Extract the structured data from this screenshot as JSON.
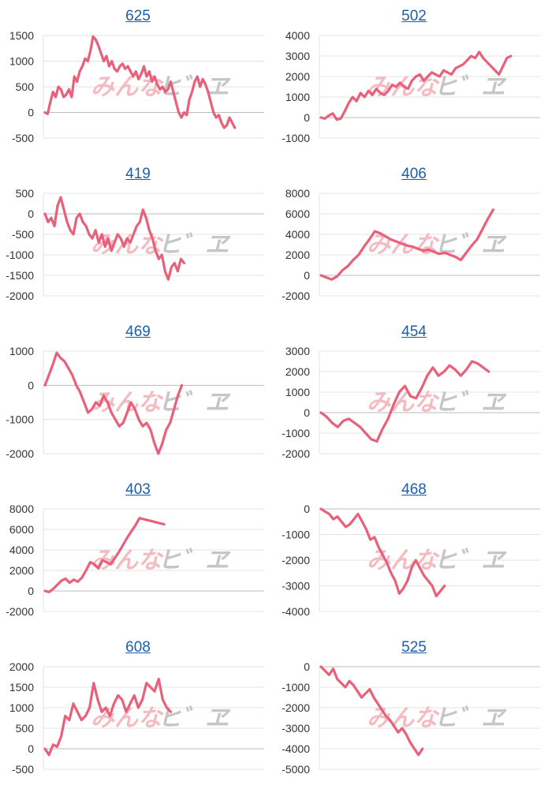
{
  "colors": {
    "line": "#e8607a",
    "grid": "#e3e3e3",
    "axis": "#bbbbbb",
    "link": "#1a5fa8",
    "watermark_pink": "#f3b8bf",
    "watermark_gray": "#c4c4c4"
  },
  "watermark": {
    "text_main": "みんな",
    "text_right": "ヒ゛ヱ"
  },
  "chart_data": [
    {
      "type": "line",
      "title": "625",
      "ylim": [
        -500,
        1500
      ],
      "yticks": [
        -500,
        0,
        500,
        1000,
        1500
      ],
      "values": [
        0,
        -30,
        200,
        400,
        300,
        500,
        450,
        300,
        350,
        450,
        300,
        700,
        600,
        800,
        900,
        1050,
        1000,
        1200,
        1480,
        1420,
        1300,
        1150,
        1000,
        1100,
        900,
        1000,
        850,
        800,
        900,
        950,
        850,
        900,
        800,
        700,
        800,
        650,
        750,
        900,
        700,
        800,
        600,
        700,
        550,
        450,
        500,
        400,
        450,
        600,
        400,
        200,
        0,
        -100,
        0,
        -50,
        250,
        400,
        600,
        700,
        500,
        650,
        550,
        400,
        200,
        0,
        -100,
        -50,
        -200,
        -300,
        -250,
        -100,
        -200,
        -300
      ]
    },
    {
      "type": "line",
      "title": "502",
      "ylim": [
        -1000,
        4000
      ],
      "yticks": [
        -1000,
        0,
        1000,
        2000,
        3000,
        4000
      ],
      "values": [
        0,
        -50,
        100,
        200,
        -100,
        -50,
        300,
        700,
        1000,
        800,
        1200,
        1000,
        1300,
        1100,
        1400,
        1200,
        1100,
        1300,
        1600,
        1500,
        1700,
        1500,
        1400,
        1800,
        2000,
        2100,
        1800,
        2000,
        2200,
        2100,
        2000,
        2300,
        2200,
        2100,
        2400,
        2500,
        2600,
        2800,
        3000,
        2900,
        3200,
        2900,
        2700,
        2500,
        2300,
        2100,
        2500,
        2900,
        3000
      ]
    },
    {
      "type": "line",
      "title": "419",
      "ylim": [
        -2000,
        500
      ],
      "yticks": [
        -2000,
        -1500,
        -1000,
        -500,
        0,
        500
      ],
      "values": [
        0,
        -200,
        -100,
        -300,
        200,
        400,
        100,
        -200,
        -400,
        -500,
        -100,
        0,
        -200,
        -300,
        -500,
        -600,
        -400,
        -700,
        -500,
        -800,
        -600,
        -900,
        -700,
        -500,
        -600,
        -800,
        -600,
        -700,
        -500,
        -300,
        -200,
        100,
        -100,
        -400,
        -600,
        -900,
        -1100,
        -1000,
        -1400,
        -1600,
        -1300,
        -1200,
        -1400,
        -1100,
        -1200
      ]
    },
    {
      "type": "line",
      "title": "406",
      "ylim": [
        -2000,
        8000
      ],
      "yticks": [
        -2000,
        0,
        2000,
        4000,
        6000,
        8000
      ],
      "values": [
        0,
        -200,
        -400,
        -100,
        500,
        900,
        1500,
        2000,
        2800,
        3500,
        4300,
        4100,
        3800,
        3500,
        3300,
        3100,
        2900,
        2800,
        2600,
        2400,
        2500,
        2300,
        2100,
        2200,
        2000,
        1800,
        1500,
        2200,
        2900,
        3500,
        4500,
        5500,
        6400
      ]
    },
    {
      "type": "line",
      "title": "469",
      "ylim": [
        -2000,
        1000
      ],
      "yticks": [
        -2000,
        -1000,
        0,
        1000
      ],
      "values": [
        0,
        300,
        600,
        950,
        800,
        700,
        500,
        300,
        0,
        -200,
        -500,
        -800,
        -700,
        -500,
        -600,
        -300,
        -500,
        -800,
        -1000,
        -1200,
        -1100,
        -800,
        -500,
        -700,
        -1000,
        -1200,
        -1100,
        -1300,
        -1700,
        -2000,
        -1700,
        -1300,
        -1100,
        -700,
        -300,
        0
      ]
    },
    {
      "type": "line",
      "title": "454",
      "ylim": [
        -2000,
        3000
      ],
      "yticks": [
        -2000,
        -1000,
        0,
        1000,
        2000,
        3000
      ],
      "values": [
        0,
        -200,
        -500,
        -700,
        -400,
        -300,
        -500,
        -700,
        -1000,
        -1300,
        -1400,
        -800,
        -300,
        400,
        1000,
        1300,
        800,
        700,
        1200,
        1800,
        2200,
        1800,
        2000,
        2300,
        2100,
        1800,
        2100,
        2500,
        2400,
        2200,
        2000
      ]
    },
    {
      "type": "line",
      "title": "403",
      "ylim": [
        -2000,
        8000
      ],
      "yticks": [
        -2000,
        0,
        2000,
        4000,
        6000,
        8000
      ],
      "values": [
        0,
        -100,
        200,
        600,
        1000,
        1200,
        800,
        1100,
        900,
        1300,
        2000,
        2800,
        2600,
        2200,
        3000,
        2800,
        2600,
        3200,
        3800,
        4500,
        5200,
        5800,
        6400,
        7100,
        7000,
        6900,
        6800,
        6700,
        6600,
        6500
      ]
    },
    {
      "type": "line",
      "title": "468",
      "ylim": [
        -4000,
        0
      ],
      "yticks": [
        -4000,
        -3000,
        -2000,
        -1000,
        0
      ],
      "values": [
        0,
        -100,
        -200,
        -400,
        -300,
        -500,
        -700,
        -600,
        -400,
        -200,
        -500,
        -800,
        -1200,
        -1100,
        -1500,
        -1800,
        -2100,
        -2500,
        -2800,
        -3300,
        -3100,
        -2800,
        -2300,
        -2000,
        -2300,
        -2600,
        -2800,
        -3000,
        -3400,
        -3200,
        -3000
      ]
    },
    {
      "type": "line",
      "title": "608",
      "ylim": [
        -500,
        2000
      ],
      "yticks": [
        -500,
        0,
        500,
        1000,
        1500,
        2000
      ],
      "values": [
        0,
        -150,
        100,
        50,
        300,
        800,
        700,
        1100,
        900,
        700,
        800,
        1000,
        1600,
        1200,
        900,
        1000,
        800,
        1100,
        1300,
        1200,
        900,
        1100,
        1300,
        1000,
        1200,
        1600,
        1500,
        1400,
        1700,
        1200,
        1000,
        900
      ]
    },
    {
      "type": "line",
      "title": "525",
      "ylim": [
        -5000,
        0
      ],
      "yticks": [
        -5000,
        -4000,
        -3000,
        -2000,
        -1000,
        0
      ],
      "values": [
        0,
        -200,
        -400,
        -100,
        -600,
        -800,
        -1000,
        -700,
        -900,
        -1200,
        -1500,
        -1300,
        -1100,
        -1500,
        -1800,
        -2100,
        -2400,
        -2600,
        -2900,
        -3200,
        -3000,
        -3300,
        -3700,
        -4000,
        -4300,
        -4000
      ]
    }
  ]
}
